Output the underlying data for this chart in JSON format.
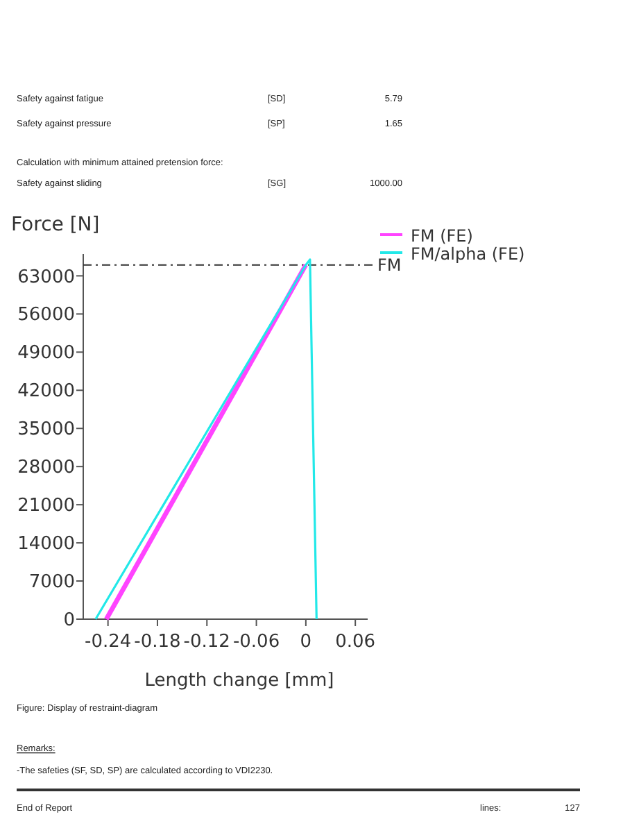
{
  "chart_data": {
    "type": "line",
    "ylabel": "Force [N]",
    "xlabel": "Length change [mm]",
    "xlim": [
      -0.27,
      0.075
    ],
    "xticks": [
      -0.24,
      -0.18,
      -0.12,
      -0.06,
      0,
      0.06
    ],
    "ylim": [
      0,
      67000
    ],
    "yticks": [
      0,
      7000,
      14000,
      21000,
      28000,
      35000,
      42000,
      49000,
      56000,
      63000
    ],
    "legend": "top right",
    "grid": false,
    "marker": "none",
    "line_style": "solid",
    "series": [
      {
        "name": "FM (FE)",
        "color": "#ff44ff",
        "x": [
          -0.242,
          0
        ],
        "values": [
          0,
          65000
        ]
      },
      {
        "name": "FM/alpha (FE)",
        "color": "#22e8e8",
        "x": [
          -0.255,
          0,
          0.005,
          0.013
        ],
        "values": [
          0,
          65000,
          66000,
          0
        ]
      }
    ],
    "ref_lines": [
      {
        "axis": "y",
        "value": 65000,
        "label": "FM",
        "color": "#333333",
        "line_style": "dashdot"
      }
    ],
    "annotations": [
      "Safety against  fatigue",
      "[SD]",
      "5.79",
      "Safety against  pressure",
      "[SP]",
      "1.65",
      "Calculation with minimum attained pretension force:",
      "Safety against  sliding",
      "[SG]",
      "1000.00",
      "Figure:  Display  of restraint-diagram",
      "Remarks:",
      "-The safeties (SF, SD, SP) are calculated  according  to VDI2230.",
      "End of Report",
      "lines:",
      "127"
    ]
  }
}
